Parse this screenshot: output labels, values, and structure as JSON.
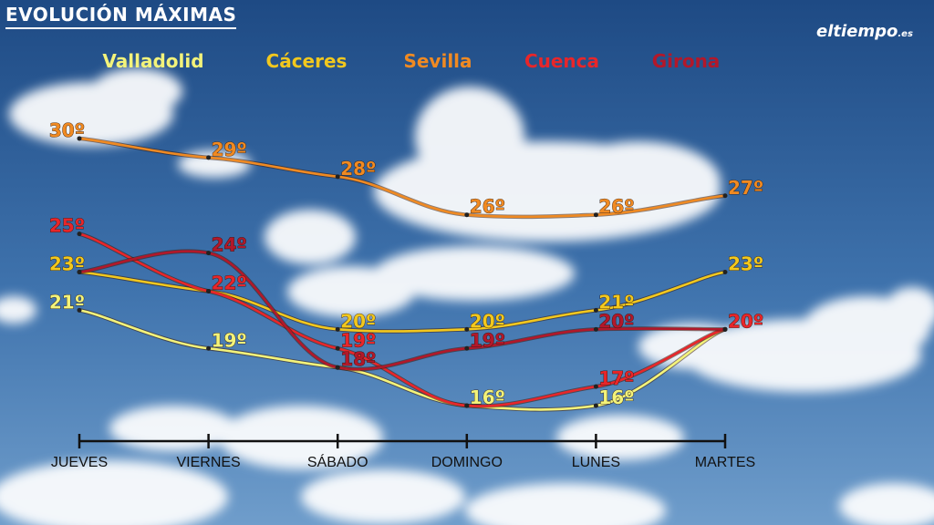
{
  "title": "EVOLUCIÓN MÁXIMAS",
  "logo": {
    "text": "eltiempo",
    "suffix": ".es"
  },
  "chart_data": {
    "type": "line",
    "categories": [
      "JUEVES",
      "VIERNES",
      "SÁBADO",
      "DOMINGO",
      "LUNES",
      "MARTES"
    ],
    "ylim": [
      15,
      31
    ],
    "grid": false,
    "legend_position": "top",
    "series": [
      {
        "name": "Valladolid",
        "color": "#f3f37a",
        "labels": [
          "21º",
          "19º",
          "",
          "16º",
          "16º",
          ""
        ],
        "values": [
          21,
          19,
          18,
          16,
          16,
          20
        ]
      },
      {
        "name": "Cáceres",
        "color": "#f2c81e",
        "labels": [
          "23º",
          "",
          "20º",
          "20º",
          "21º",
          "23º"
        ],
        "values": [
          23,
          22,
          20,
          20,
          21,
          23
        ]
      },
      {
        "name": "Sevilla",
        "color": "#f08a22",
        "labels": [
          "30º",
          "29º",
          "28º",
          "26º",
          "26º",
          "27º"
        ],
        "values": [
          30,
          29,
          28,
          26,
          26,
          27
        ]
      },
      {
        "name": "Cuenca",
        "color": "#e8262a",
        "labels": [
          "25º",
          "22º",
          "19º",
          "",
          "17º",
          "20º"
        ],
        "values": [
          25,
          22,
          19,
          16,
          17,
          20
        ]
      },
      {
        "name": "Girona",
        "color": "#b2182a",
        "labels": [
          "",
          "24º",
          "18º",
          "19º",
          "20º",
          ""
        ],
        "values": [
          23,
          24,
          18,
          19,
          20,
          20
        ]
      }
    ]
  }
}
